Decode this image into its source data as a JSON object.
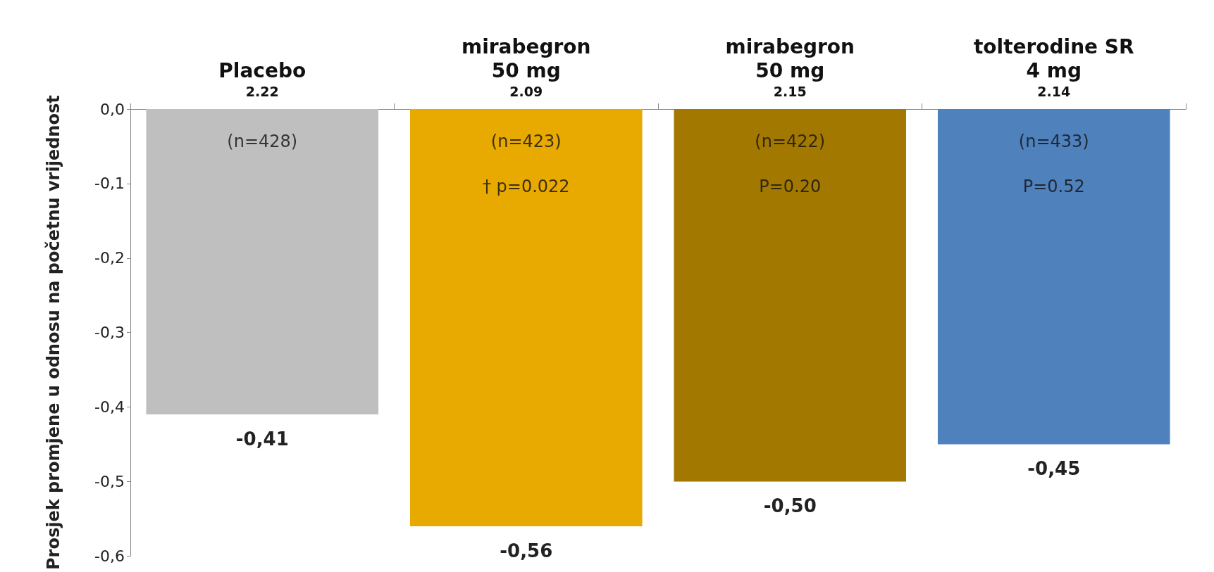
{
  "chart_data": {
    "type": "bar",
    "ylabel": "Prosjek promjene u odnosu na početnu vrijednost",
    "categories": [
      "Placebo\n2.22",
      "mirabegron\n50 mg\n2.09",
      "mirabegron\n50 mg\n2.15",
      "tolterodine SR\n4 mg\n2.14"
    ],
    "values": [
      -0.41,
      -0.56,
      -0.5,
      -0.45
    ],
    "colors": [
      "#bfbfbf",
      "#e8a900",
      "#a37800",
      "#4f81bd"
    ],
    "value_labels": [
      "-0,41",
      "-0,56",
      "-0,50",
      "-0,45"
    ],
    "ylim": [
      -0.6,
      0
    ],
    "yticks": [
      {
        "value": 0,
        "label": "0,0"
      },
      {
        "value": -0.1,
        "label": "-0,1"
      },
      {
        "value": -0.2,
        "label": "-0,2"
      },
      {
        "value": -0.3,
        "label": "-0,3"
      },
      {
        "value": -0.4,
        "label": "-0,4"
      },
      {
        "value": -0.5,
        "label": "-0,5"
      },
      {
        "value": -0.6,
        "label": "-0,6"
      }
    ],
    "annotations": [
      "(n=428)",
      "(n=423)\n† p=0.022",
      "(n=422)\nP=0.20",
      "(n=433)\nP=0.52"
    ],
    "grid": false
  }
}
